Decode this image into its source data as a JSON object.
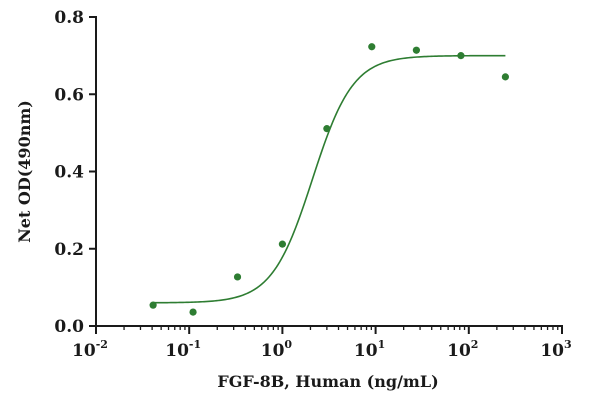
{
  "chart_data": {
    "type": "scatter",
    "x_scale": "log",
    "xlim": [
      0.01,
      1000
    ],
    "ylim": [
      0,
      0.8
    ],
    "xlabel": "FGF-8B, Human (ng/mL)",
    "ylabel": "Net OD(490nm)",
    "x_ticks": [
      {
        "base": "10",
        "exp": "-2",
        "value": 0.01
      },
      {
        "base": "10",
        "exp": "-1",
        "value": 0.1
      },
      {
        "base": "10",
        "exp": "0",
        "value": 1
      },
      {
        "base": "10",
        "exp": "1",
        "value": 10
      },
      {
        "base": "10",
        "exp": "2",
        "value": 100
      },
      {
        "base": "10",
        "exp": "3",
        "value": 1000
      }
    ],
    "y_ticks": [
      "0.0",
      "0.2",
      "0.4",
      "0.6",
      "0.8"
    ],
    "series": [
      {
        "x": [
          0.041,
          0.11,
          0.33,
          1.0,
          3.0,
          9.1,
          27.4,
          82.3,
          247
        ],
        "y": [
          0.054,
          0.036,
          0.127,
          0.212,
          0.511,
          0.723,
          0.714,
          0.7,
          0.645
        ],
        "color": "#2e7d32",
        "fit": {
          "bottom": 0.06,
          "top": 0.7,
          "ec50": 2.1,
          "hill": 2.0
        }
      }
    ],
    "grid": false
  }
}
